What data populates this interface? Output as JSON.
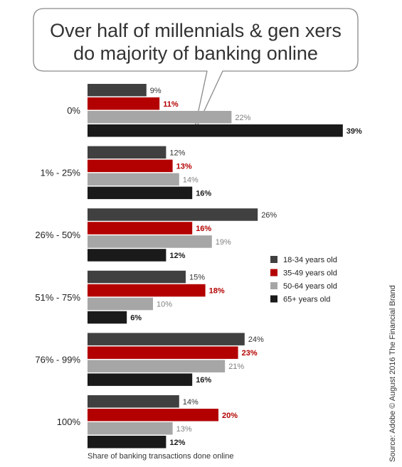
{
  "chart_data": {
    "type": "bar",
    "orientation": "horizontal",
    "title_lines": [
      "Over half of millennials & gen xers",
      "do majority of banking online"
    ],
    "categories": [
      "0%",
      "1% - 25%",
      "26% - 50%",
      "51% - 75%",
      "76% - 99%",
      "100%"
    ],
    "series": [
      {
        "name": "18-34 years old",
        "color": "#404040",
        "label_color": "#333333",
        "values": [
          9,
          12,
          26,
          15,
          24,
          14
        ]
      },
      {
        "name": "35-49 years old",
        "color": "#b30000",
        "label_color": "#b30000",
        "values": [
          11,
          13,
          16,
          18,
          23,
          20
        ]
      },
      {
        "name": "50-64 years old",
        "color": "#a6a6a6",
        "label_color": "#808080",
        "values": [
          22,
          14,
          19,
          10,
          21,
          13
        ]
      },
      {
        "name": "65+ years old",
        "color": "#1a1a1a",
        "label_color": "#1a1a1a",
        "values": [
          39,
          16,
          12,
          6,
          16,
          12
        ]
      }
    ],
    "value_suffix": "%",
    "xlabel": "Share of banking transactions done online",
    "xlim": [
      0,
      40
    ],
    "legend_position": "right",
    "source": "Source: Adobe © August 2016 The Financial Brand"
  }
}
